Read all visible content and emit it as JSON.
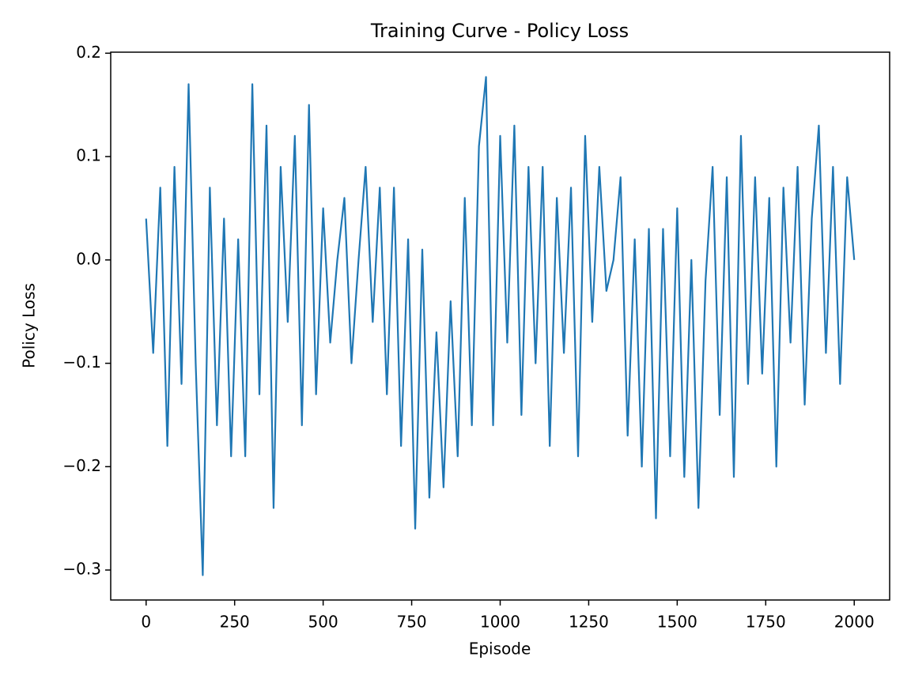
{
  "chart_data": {
    "type": "line",
    "title": "Training Curve - Policy Loss",
    "x_label": "Episode",
    "y_label": "Policy Loss",
    "x": [
      0,
      20,
      40,
      60,
      80,
      100,
      120,
      140,
      160,
      180,
      200,
      220,
      240,
      260,
      280,
      300,
      320,
      340,
      360,
      380,
      400,
      420,
      440,
      460,
      480,
      500,
      520,
      540,
      560,
      580,
      600,
      620,
      640,
      660,
      680,
      700,
      720,
      740,
      760,
      780,
      800,
      820,
      840,
      860,
      880,
      900,
      920,
      940,
      960,
      980,
      1000,
      1020,
      1040,
      1060,
      1080,
      1100,
      1120,
      1140,
      1160,
      1180,
      1200,
      1220,
      1240,
      1260,
      1280,
      1300,
      1320,
      1340,
      1360,
      1380,
      1400,
      1420,
      1440,
      1460,
      1480,
      1500,
      1520,
      1540,
      1560,
      1580,
      1600,
      1620,
      1640,
      1660,
      1680,
      1700,
      1720,
      1740,
      1760,
      1780,
      1800,
      1820,
      1840,
      1860,
      1880,
      1900,
      1920,
      1940,
      1960,
      1980,
      2000
    ],
    "series": [
      {
        "name": "Policy Loss",
        "color": "#1f77b4",
        "values": [
          0.04,
          -0.09,
          0.07,
          -0.18,
          0.09,
          -0.12,
          0.17,
          -0.1,
          -0.305,
          0.07,
          -0.16,
          0.04,
          -0.19,
          0.02,
          -0.19,
          0.17,
          -0.13,
          0.13,
          -0.24,
          0.09,
          -0.06,
          0.12,
          -0.16,
          0.15,
          -0.13,
          0.05,
          -0.08,
          0.0,
          0.06,
          -0.1,
          0.0,
          0.09,
          -0.06,
          0.07,
          -0.13,
          0.07,
          -0.18,
          0.02,
          -0.26,
          0.01,
          -0.23,
          -0.07,
          -0.22,
          -0.04,
          -0.19,
          0.06,
          -0.16,
          0.11,
          0.177,
          -0.16,
          0.12,
          -0.08,
          0.13,
          -0.15,
          0.09,
          -0.1,
          0.09,
          -0.18,
          0.06,
          -0.09,
          0.07,
          -0.19,
          0.12,
          -0.06,
          0.09,
          -0.03,
          0.0,
          0.08,
          -0.17,
          0.02,
          -0.2,
          0.03,
          -0.25,
          0.03,
          -0.19,
          0.05,
          -0.21,
          0.0,
          -0.24,
          -0.02,
          0.09,
          -0.15,
          0.08,
          -0.21,
          0.12,
          -0.12,
          0.08,
          -0.11,
          0.06,
          -0.2,
          0.07,
          -0.08,
          0.09,
          -0.14,
          0.04,
          0.13,
          -0.09,
          0.09,
          -0.12,
          0.08,
          0.0
        ]
      }
    ],
    "xlim": [
      -100,
      2100
    ],
    "ylim": [
      -0.329,
      0.201
    ],
    "xticks": [
      0,
      250,
      500,
      750,
      1000,
      1250,
      1500,
      1750,
      2000
    ],
    "yticks": [
      {
        "value": -0.3,
        "label": "−0.3"
      },
      {
        "value": -0.2,
        "label": "−0.2"
      },
      {
        "value": -0.1,
        "label": "−0.1"
      },
      {
        "value": 0,
        "label": "0.0"
      },
      0.1,
      0.2
    ],
    "grid": false
  }
}
